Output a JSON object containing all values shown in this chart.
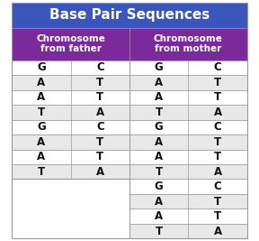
{
  "title": "Base Pair Sequences",
  "title_bg": "#3a55bb",
  "title_color": "#ffffff",
  "title_fontsize": 11,
  "col_header_bg": "#7a2a9a",
  "col_header_color": "#ffffff",
  "col_header_fontsize": 7.5,
  "col_headers": [
    "Chromosome\nfrom father",
    "Chromosome\nfrom mother"
  ],
  "father_data": [
    [
      "G",
      "C"
    ],
    [
      "A",
      "T"
    ],
    [
      "A",
      "T"
    ],
    [
      "T",
      "A"
    ],
    [
      "G",
      "C"
    ],
    [
      "A",
      "T"
    ],
    [
      "A",
      "T"
    ],
    [
      "T",
      "A"
    ]
  ],
  "mother_data": [
    [
      "G",
      "C"
    ],
    [
      "A",
      "T"
    ],
    [
      "A",
      "T"
    ],
    [
      "T",
      "A"
    ],
    [
      "G",
      "C"
    ],
    [
      "A",
      "T"
    ],
    [
      "A",
      "T"
    ],
    [
      "T",
      "A"
    ],
    [
      "G",
      "C"
    ],
    [
      "A",
      "T"
    ],
    [
      "A",
      "T"
    ],
    [
      "T",
      "A"
    ]
  ],
  "row_bg_white": "#ffffff",
  "row_bg_gray": "#e8e8e8",
  "cell_text_color": "#111111",
  "border_color": "#999999",
  "data_fontsize": 8.5,
  "fig_width": 2.88,
  "fig_height": 2.67,
  "dpi": 100
}
